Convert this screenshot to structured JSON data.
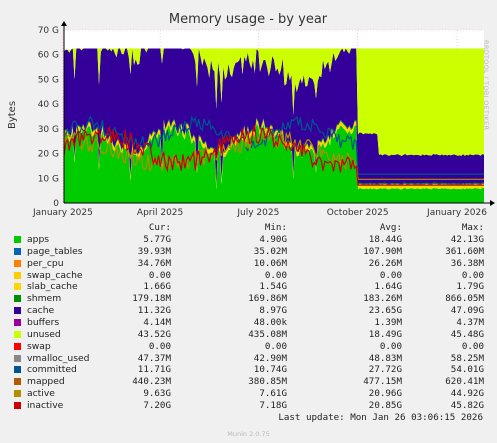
{
  "side_label": "RRDTOOL / TOBI OETIKER",
  "chart_data": {
    "type": "area",
    "title": "Memory usage - by year",
    "ylabel": "Bytes",
    "ylim": [
      0,
      70
    ],
    "y_ticks": [
      "0",
      "10 G",
      "20 G",
      "30 G",
      "40 G",
      "50 G",
      "60 G",
      "70 G"
    ],
    "x_ticks": [
      "January 2025",
      "April 2025",
      "July 2025",
      "October 2025",
      "January 2026"
    ],
    "x_start": "2025-01-02",
    "x_end": "2026-01-26",
    "colors": {
      "apps": "#00cc00",
      "page_tables": "#0066b3",
      "per_cpu": "#ff8000",
      "swap_cache": "#ffcc00",
      "slab_cache": "#ffd700",
      "shmem": "#008f00",
      "cache": "#330099",
      "buffers": "#990099",
      "unused": "#ccff00",
      "swap": "#ff0000",
      "vmalloc_used": "#888888",
      "committed": "#00548f",
      "mapped": "#b35a00",
      "active": "#b38f00",
      "inactive": "#cc0000"
    }
  },
  "legend": {
    "headers": {
      "cur": "Cur:",
      "min": "Min:",
      "avg": "Avg:",
      "max": "Max:"
    },
    "rows": [
      {
        "name": "apps",
        "color": "#00cc00",
        "cur": "5.77G",
        "min": "4.90G",
        "avg": "18.44G",
        "max": "42.13G"
      },
      {
        "name": "page_tables",
        "color": "#0066b3",
        "cur": "39.93M",
        "min": "35.02M",
        "avg": "107.90M",
        "max": "361.60M"
      },
      {
        "name": "per_cpu",
        "color": "#ff8000",
        "cur": "34.76M",
        "min": "10.06M",
        "avg": "26.26M",
        "max": "36.38M"
      },
      {
        "name": "swap_cache",
        "color": "#ffcc00",
        "cur": "0.00",
        "min": "0.00",
        "avg": "0.00",
        "max": "0.00"
      },
      {
        "name": "slab_cache",
        "color": "#ffd700",
        "cur": "1.66G",
        "min": "1.54G",
        "avg": "1.64G",
        "max": "1.79G"
      },
      {
        "name": "shmem",
        "color": "#008f00",
        "cur": "179.18M",
        "min": "169.86M",
        "avg": "183.26M",
        "max": "866.05M"
      },
      {
        "name": "cache",
        "color": "#330099",
        "cur": "11.32G",
        "min": "8.97G",
        "avg": "23.65G",
        "max": "47.09G"
      },
      {
        "name": "buffers",
        "color": "#990099",
        "cur": "4.14M",
        "min": "48.00k",
        "avg": "1.39M",
        "max": "4.37M"
      },
      {
        "name": "unused",
        "color": "#ccff00",
        "cur": "43.52G",
        "min": "435.08M",
        "avg": "18.49G",
        "max": "45.48G"
      },
      {
        "name": "swap",
        "color": "#ff0000",
        "cur": "0.00",
        "min": "0.00",
        "avg": "0.00",
        "max": "0.00"
      },
      {
        "name": "vmalloc_used",
        "color": "#888888",
        "cur": "47.37M",
        "min": "42.90M",
        "avg": "48.83M",
        "max": "58.25M"
      },
      {
        "name": "committed",
        "color": "#00548f",
        "cur": "11.71G",
        "min": "10.74G",
        "avg": "27.72G",
        "max": "54.01G"
      },
      {
        "name": "mapped",
        "color": "#b35a00",
        "cur": "440.23M",
        "min": "380.85M",
        "avg": "477.15M",
        "max": "620.41M"
      },
      {
        "name": "active",
        "color": "#b38f00",
        "cur": "9.63G",
        "min": "7.61G",
        "avg": "20.96G",
        "max": "44.92G"
      },
      {
        "name": "inactive",
        "color": "#cc0000",
        "cur": "7.20G",
        "min": "7.18G",
        "avg": "20.85G",
        "max": "45.82G"
      }
    ]
  },
  "last_update": "Last update: Mon Jan 26 03:06:15 2026",
  "footer": "Munin 2.0.75"
}
